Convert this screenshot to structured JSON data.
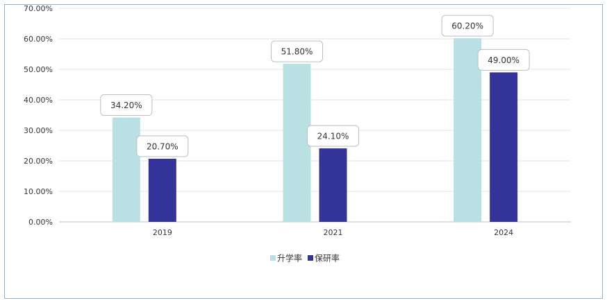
{
  "chart_data": {
    "type": "bar",
    "title": "",
    "xlabel": "",
    "ylabel": "",
    "categories": [
      "2019",
      "2021",
      "2024"
    ],
    "ylim": [
      0,
      70
    ],
    "yticks": [
      "0.00%",
      "10.00%",
      "20.00%",
      "30.00%",
      "40.00%",
      "50.00%",
      "60.00%",
      "70.00%"
    ],
    "grid": true,
    "legend_position": "bottom",
    "series": [
      {
        "name": "升学率",
        "values": [
          34.2,
          51.8,
          60.2
        ],
        "labels": [
          "34.20%",
          "51.80%",
          "60.20%"
        ],
        "color": "#b9e1e3"
      },
      {
        "name": "保研率",
        "values": [
          20.7,
          24.1,
          49.0
        ],
        "labels": [
          "20.70%",
          "24.10%",
          "49.00%"
        ],
        "color": "#33339a"
      }
    ]
  }
}
